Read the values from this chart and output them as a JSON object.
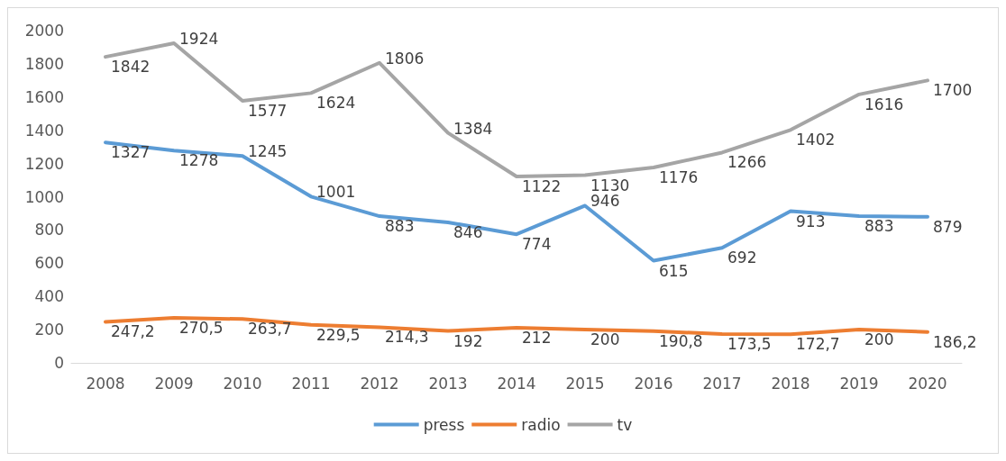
{
  "chart_data": {
    "type": "line",
    "categories": [
      "2008",
      "2009",
      "2010",
      "2011",
      "2012",
      "2013",
      "2014",
      "2015",
      "2016",
      "2017",
      "2018",
      "2019",
      "2020"
    ],
    "series": [
      {
        "name": "press",
        "color": "#5b9bd5",
        "values": [
          1327,
          1278,
          1245,
          1001,
          883,
          846,
          774,
          946,
          615,
          692,
          913,
          883,
          879
        ],
        "value_labels": [
          "1327",
          "1278",
          "1245",
          "1001",
          "883",
          "846",
          "774",
          "946",
          "615",
          "692",
          "913",
          "883",
          "879"
        ]
      },
      {
        "name": "radio",
        "color": "#ed7d31",
        "values": [
          247.2,
          270.5,
          263.7,
          229.5,
          214.3,
          192,
          212,
          200,
          190.8,
          173.5,
          172.7,
          200,
          186.2
        ],
        "value_labels": [
          "247,2",
          "270,5",
          "263,7",
          "229,5",
          "214,3",
          "192",
          "212",
          "200",
          "190,8",
          "173,5",
          "172,7",
          "200",
          "186,2"
        ]
      },
      {
        "name": "tv",
        "color": "#a5a5a5",
        "values": [
          1842,
          1924,
          1577,
          1624,
          1806,
          1384,
          1122,
          1130,
          1176,
          1266,
          1402,
          1616,
          1700
        ],
        "value_labels": [
          "1842",
          "1924",
          "1577",
          "1624",
          "1806",
          "1384",
          "1122",
          "1130",
          "1176",
          "1266",
          "1402",
          "1616",
          "1700"
        ]
      }
    ],
    "ylim": [
      0,
      2000
    ],
    "yticks": [
      0,
      200,
      400,
      600,
      800,
      1000,
      1200,
      1400,
      1600,
      1800,
      2000
    ],
    "grid": false,
    "legend": "bottom",
    "marker": "none",
    "line_style": "solid"
  }
}
